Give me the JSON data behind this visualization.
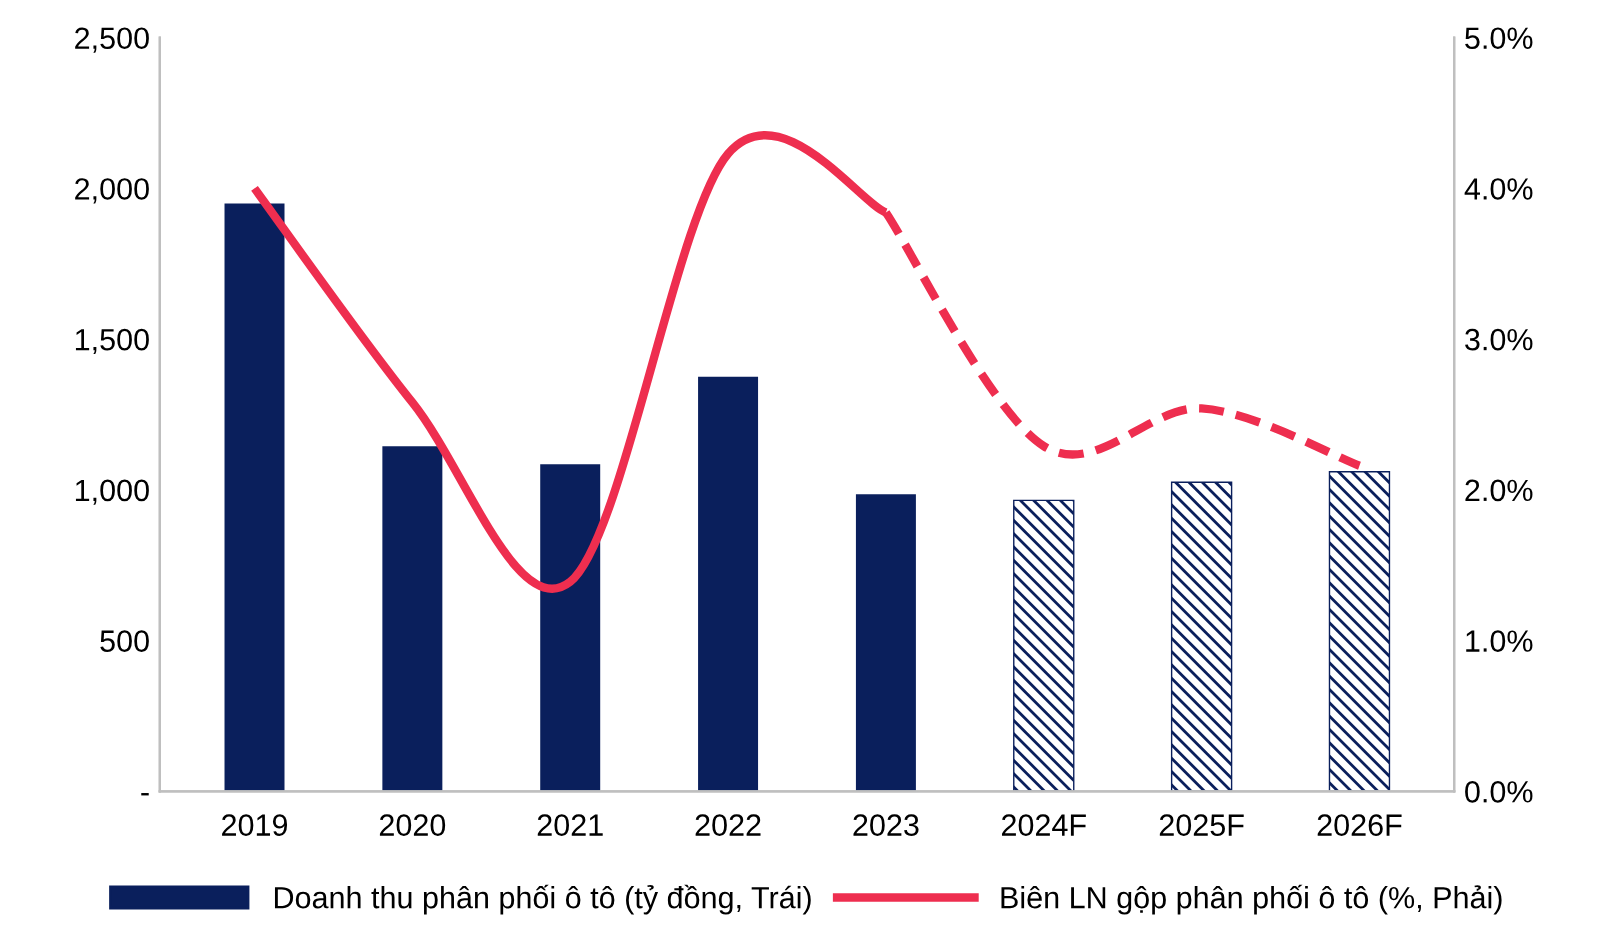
{
  "chart_data": {
    "type": "bar",
    "categories": [
      "2019",
      "2020",
      "2021",
      "2022",
      "2023",
      "2024F",
      "2025F",
      "2026F"
    ],
    "series": [
      {
        "name": "Doanh thu phân phối ô tô (tỷ đồng, Trái)",
        "color": "#0a1f5c",
        "values": [
          1950,
          1145,
          1085,
          1375,
          985,
          null,
          null,
          null
        ]
      },
      {
        "color": "#0a1f5c",
        "values": [
          null,
          null,
          null,
          null,
          null,
          965,
          1025,
          1060
        ]
      },
      {
        "name": "Biên LN gộp phân phối ô tô (%, Phải)",
        "type": "line",
        "axis": "y2",
        "color": "#ee2e4f",
        "line_style": "solid",
        "values": [
          4.0,
          2.58,
          1.39,
          4.23,
          3.84,
          null,
          null,
          null
        ]
      },
      {
        "type": "line",
        "axis": "y2",
        "color": "#ee2e4f",
        "line_style": "dashed",
        "values": [
          null,
          null,
          null,
          null,
          3.84,
          2.29,
          2.54,
          2.16
        ]
      }
    ],
    "ylim": [
      0,
      2500
    ],
    "yticks": [
      {
        "value": 0,
        "label": "-"
      },
      {
        "value": 500,
        "label": "500"
      },
      {
        "value": 1000,
        "label": "1,000"
      },
      {
        "value": 1500,
        "label": "1,500"
      },
      {
        "value": 2000,
        "label": "2,000"
      },
      {
        "value": 2500,
        "label": "2,500"
      }
    ],
    "y2lim": [
      0,
      5
    ],
    "y2ticks": [
      {
        "value": 0,
        "label": "0.0%"
      },
      {
        "value": 1,
        "label": "1.0%"
      },
      {
        "value": 2,
        "label": "2.0%"
      },
      {
        "value": 3,
        "label": "3.0%"
      },
      {
        "value": 4,
        "label": "4.0%"
      },
      {
        "value": 5,
        "label": "5.0%"
      }
    ],
    "grid": false,
    "legend": "bottom"
  }
}
